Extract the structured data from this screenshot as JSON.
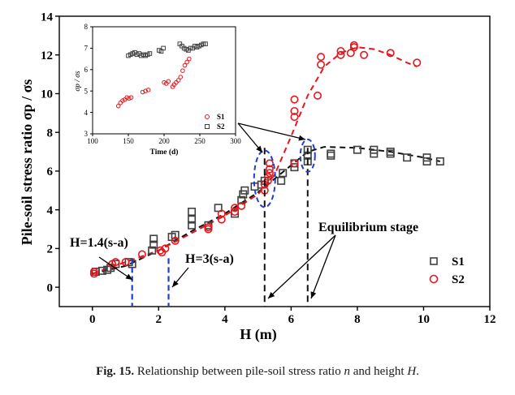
{
  "caption": {
    "label": "Fig. 15.",
    "text_before": "Relationship between pile-soil stress ratio",
    "var_n": "n",
    "text_mid": "and height",
    "var_H": "H",
    "text_end": "."
  },
  "colors": {
    "s1": "#404040",
    "s2": "#e8161c",
    "dashed_vline": "#111111",
    "blue": "#1f3fd0"
  },
  "chart_data": [
    {
      "type": "scatter",
      "xlabel": "H (m)",
      "ylabel": "Pile-soil stress ratio",
      "ylabel_symbol": "σp / σs",
      "xlim": [
        -1,
        12
      ],
      "ylim": [
        -1,
        14
      ],
      "xticks": [
        0,
        2,
        4,
        6,
        8,
        10,
        12
      ],
      "yticks": [
        0,
        2,
        4,
        6,
        8,
        10,
        12,
        14
      ],
      "legend_placement": "bottom-right",
      "series": [
        {
          "name": "S1",
          "marker": "square",
          "points": [
            [
              0.1,
              0.8
            ],
            [
              0.3,
              0.85
            ],
            [
              0.45,
              0.9
            ],
            [
              0.55,
              1.0
            ],
            [
              0.7,
              1.2
            ],
            [
              1.1,
              1.3
            ],
            [
              1.2,
              1.2
            ],
            [
              1.8,
              1.9
            ],
            [
              1.85,
              2.2
            ],
            [
              1.85,
              2.5
            ],
            [
              2.4,
              2.6
            ],
            [
              2.5,
              2.7
            ],
            [
              3.0,
              3.2
            ],
            [
              3.0,
              3.5
            ],
            [
              3.0,
              3.9
            ],
            [
              3.5,
              3.2
            ],
            [
              3.8,
              4.1
            ],
            [
              4.3,
              3.8
            ],
            [
              4.5,
              4.5
            ],
            [
              4.55,
              4.8
            ],
            [
              4.6,
              5.0
            ],
            [
              4.9,
              5.2
            ],
            [
              5.1,
              5.3
            ],
            [
              5.2,
              5.5
            ],
            [
              5.7,
              5.5
            ],
            [
              5.75,
              5.9
            ],
            [
              6.1,
              6.2
            ],
            [
              6.1,
              6.4
            ],
            [
              6.5,
              6.5
            ],
            [
              6.5,
              6.8
            ],
            [
              6.5,
              7.1
            ],
            [
              7.2,
              6.9
            ],
            [
              7.2,
              6.8
            ],
            [
              8.0,
              7.1
            ],
            [
              8.5,
              7.1
            ],
            [
              8.5,
              6.9
            ],
            [
              9.0,
              7.0
            ],
            [
              9.0,
              6.9
            ],
            [
              9.5,
              6.7
            ],
            [
              10.1,
              6.7
            ],
            [
              10.1,
              6.5
            ],
            [
              10.5,
              6.5
            ]
          ],
          "fit": [
            [
              0.0,
              0.7
            ],
            [
              1.0,
              1.1
            ],
            [
              2.0,
              1.9
            ],
            [
              3.0,
              2.9
            ],
            [
              4.0,
              3.8
            ],
            [
              5.0,
              4.9
            ],
            [
              6.0,
              6.3
            ],
            [
              6.5,
              7.0
            ],
            [
              7.0,
              7.25
            ],
            [
              8.0,
              7.2
            ],
            [
              9.0,
              7.0
            ],
            [
              10.0,
              6.7
            ],
            [
              10.5,
              6.5
            ]
          ]
        },
        {
          "name": "S2",
          "marker": "circle",
          "points": [
            [
              0.05,
              0.7
            ],
            [
              0.05,
              0.8
            ],
            [
              0.6,
              1.2
            ],
            [
              0.7,
              1.3
            ],
            [
              1.0,
              1.3
            ],
            [
              1.5,
              1.7
            ],
            [
              2.05,
              1.9
            ],
            [
              2.1,
              1.8
            ],
            [
              2.2,
              2.0
            ],
            [
              2.5,
              2.4
            ],
            [
              3.5,
              3.0
            ],
            [
              3.5,
              3.1
            ],
            [
              3.9,
              3.5
            ],
            [
              3.9,
              3.8
            ],
            [
              4.3,
              3.9
            ],
            [
              4.3,
              4.1
            ],
            [
              4.5,
              4.2
            ],
            [
              5.2,
              5.0
            ],
            [
              5.2,
              5.3
            ],
            [
              5.3,
              5.5
            ],
            [
              5.3,
              5.7
            ],
            [
              5.35,
              5.9
            ],
            [
              5.35,
              6.1
            ],
            [
              5.35,
              6.4
            ],
            [
              6.1,
              6.4
            ],
            [
              6.1,
              8.8
            ],
            [
              6.1,
              9.1
            ],
            [
              6.1,
              9.7
            ],
            [
              6.8,
              9.9
            ],
            [
              6.9,
              11.5
            ],
            [
              6.9,
              11.9
            ],
            [
              7.5,
              12.0
            ],
            [
              7.5,
              12.2
            ],
            [
              7.8,
              12.1
            ],
            [
              7.9,
              12.4
            ],
            [
              7.9,
              12.5
            ],
            [
              8.2,
              12.0
            ],
            [
              9.0,
              12.1
            ],
            [
              9.8,
              11.6
            ]
          ],
          "fit": [
            [
              0.0,
              0.7
            ],
            [
              1.0,
              1.3
            ],
            [
              2.0,
              1.9
            ],
            [
              3.0,
              2.8
            ],
            [
              4.0,
              3.7
            ],
            [
              5.0,
              4.8
            ],
            [
              5.5,
              5.8
            ],
            [
              6.0,
              7.8
            ],
            [
              6.5,
              9.9
            ],
            [
              7.0,
              11.4
            ],
            [
              7.5,
              12.1
            ],
            [
              8.0,
              12.4
            ],
            [
              8.5,
              12.3
            ],
            [
              9.0,
              12.0
            ],
            [
              9.5,
              11.6
            ],
            [
              9.8,
              11.4
            ]
          ]
        }
      ],
      "annotations": {
        "h14": {
          "text": "H=1.4(s-a)",
          "x": 1.2
        },
        "h3": {
          "text": "H=3(s-a)",
          "x": 2.3
        },
        "equilibrium": {
          "text": "Equilibrium stage",
          "x": [
            5.2,
            6.5
          ]
        }
      }
    },
    {
      "type": "scatter",
      "xlabel": "Time (d)",
      "ylabel": "σp / σs",
      "xlim": [
        100,
        300
      ],
      "ylim": [
        3,
        8
      ],
      "xticks": [
        100,
        150,
        200,
        250,
        300
      ],
      "yticks": [
        3,
        4,
        5,
        6,
        7,
        8
      ],
      "legend_placement": "bottom-right",
      "series": [
        {
          "name": "S1",
          "marker": "square",
          "points": [
            [
              150,
              6.65
            ],
            [
              153,
              6.7
            ],
            [
              156,
              6.75
            ],
            [
              159,
              6.8
            ],
            [
              162,
              6.7
            ],
            [
              165,
              6.75
            ],
            [
              168,
              6.65
            ],
            [
              171,
              6.7
            ],
            [
              174,
              6.65
            ],
            [
              177,
              6.7
            ],
            [
              180,
              6.75
            ],
            [
              193,
              6.9
            ],
            [
              196,
              6.85
            ],
            [
              199,
              7.0
            ],
            [
              222,
              7.2
            ],
            [
              225,
              7.1
            ],
            [
              228,
              7.0
            ],
            [
              231,
              6.95
            ],
            [
              234,
              6.9
            ],
            [
              237,
              7.0
            ],
            [
              240,
              7.0
            ],
            [
              243,
              7.1
            ],
            [
              246,
              7.05
            ],
            [
              249,
              7.1
            ],
            [
              252,
              7.15
            ],
            [
              255,
              7.2
            ],
            [
              258,
              7.2
            ]
          ]
        },
        {
          "name": "S2",
          "marker": "circle",
          "points": [
            [
              136,
              4.3
            ],
            [
              139,
              4.45
            ],
            [
              142,
              4.55
            ],
            [
              145,
              4.6
            ],
            [
              148,
              4.7
            ],
            [
              151,
              4.65
            ],
            [
              154,
              4.7
            ],
            [
              170,
              4.95
            ],
            [
              174,
              5.0
            ],
            [
              178,
              5.05
            ],
            [
              200,
              5.4
            ],
            [
              203,
              5.35
            ],
            [
              206,
              5.45
            ],
            [
              212,
              5.2
            ],
            [
              214,
              5.3
            ],
            [
              217,
              5.4
            ],
            [
              220,
              5.5
            ],
            [
              223,
              5.65
            ],
            [
              226,
              5.95
            ],
            [
              229,
              6.2
            ],
            [
              232,
              6.35
            ],
            [
              235,
              6.5
            ]
          ]
        }
      ]
    }
  ]
}
